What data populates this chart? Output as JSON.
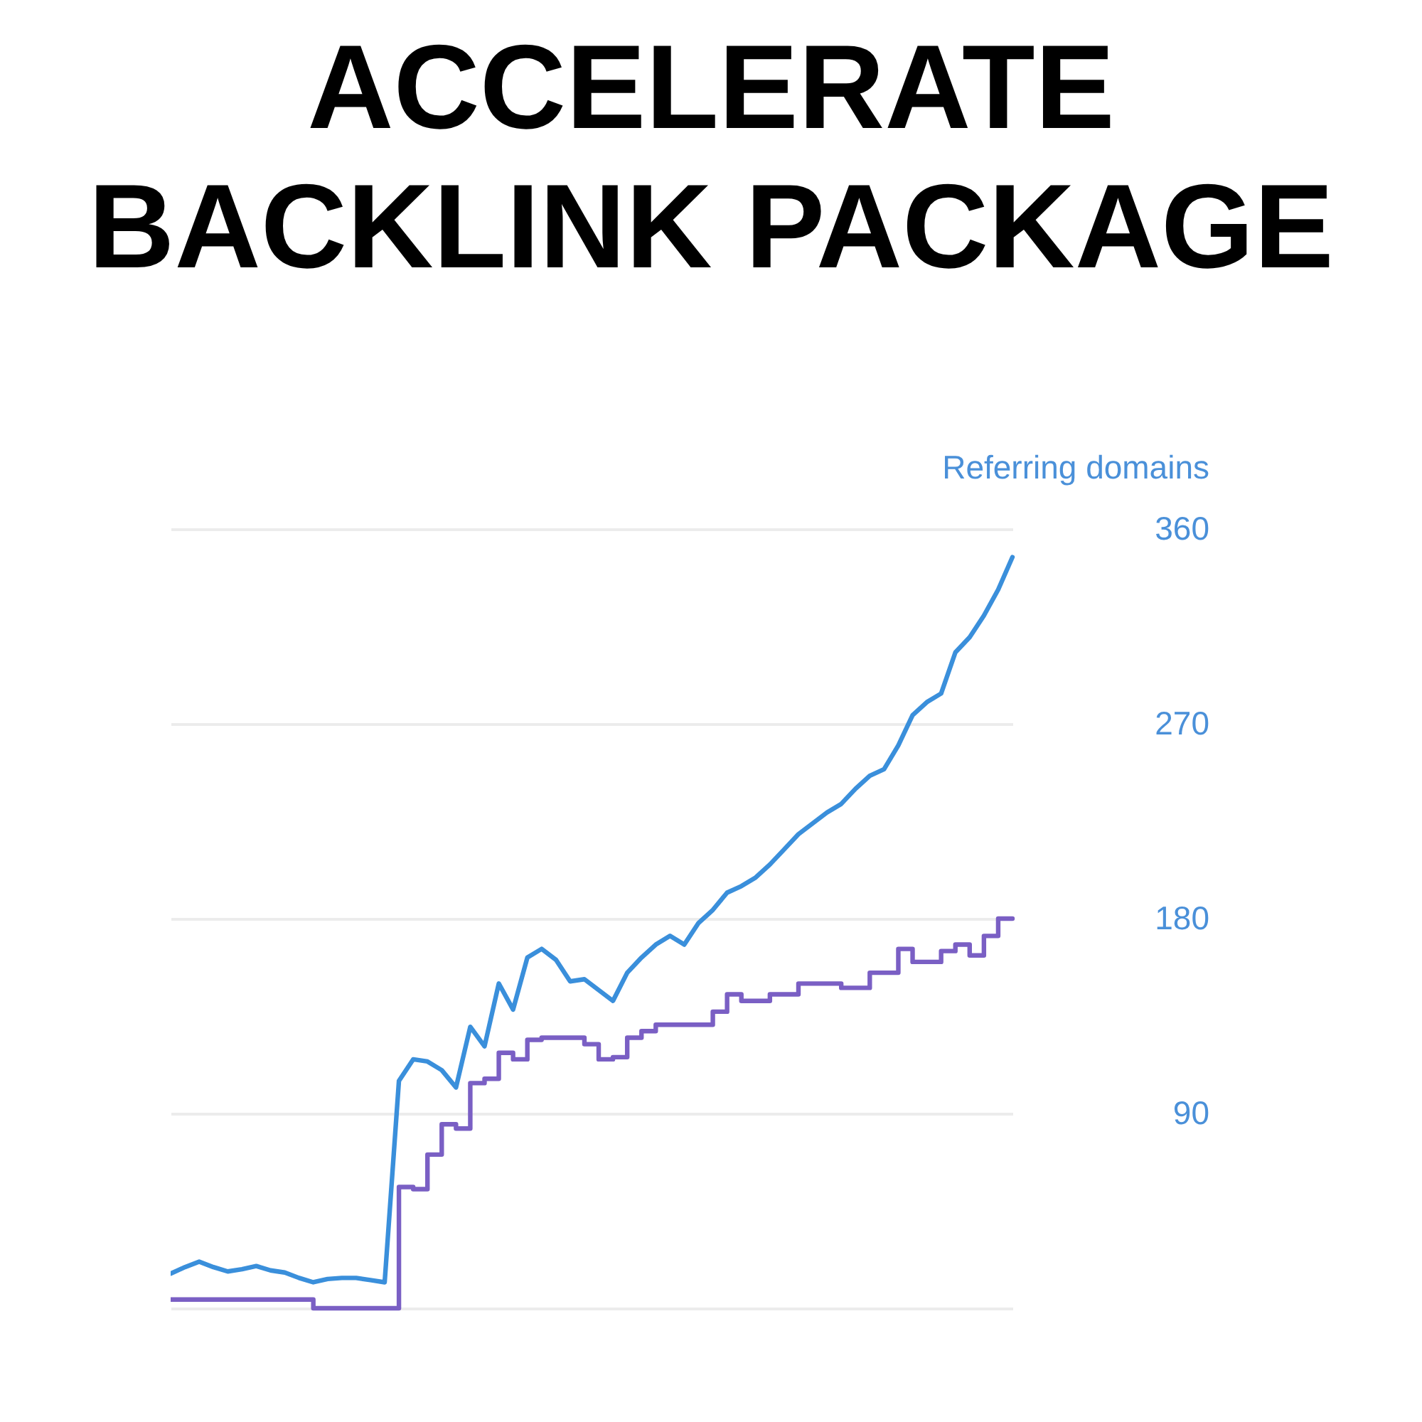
{
  "chart_data": {
    "type": "line",
    "title": "ACCELERATE BACKLINK PACKAGE",
    "ylabel": "Referring domains",
    "categories": [
      null,
      null,
      null,
      null,
      null,
      null,
      null,
      null,
      null,
      null,
      null,
      null,
      null,
      null,
      null,
      null,
      null,
      null,
      null,
      null,
      null,
      null,
      null,
      null,
      null,
      null,
      null,
      null,
      null,
      null,
      null,
      null,
      null,
      null,
      null,
      null,
      null,
      null,
      null,
      null,
      null,
      null,
      null,
      null,
      null,
      null,
      null,
      null,
      null,
      null,
      null,
      null,
      null,
      null,
      null,
      null,
      null,
      null,
      null,
      null
    ],
    "series": [
      {
        "color": "#3a8fdb",
        "values": [
          16,
          19,
          21.5,
          19,
          17,
          18,
          19.5,
          17.5,
          16.5,
          14,
          12,
          13.5,
          14,
          14,
          13,
          12,
          105,
          115,
          114,
          110,
          102,
          130,
          121,
          150,
          138,
          162,
          166,
          161,
          151,
          152,
          147,
          142,
          155,
          162,
          168,
          172,
          168,
          178,
          184,
          192,
          195,
          199,
          205,
          212,
          219,
          224,
          229,
          233,
          240,
          246,
          249,
          260,
          274,
          280,
          284,
          303,
          310,
          320,
          332,
          347
        ]
      },
      {
        "type": "step",
        "color": "#7a5fc4",
        "values": [
          4,
          4,
          4,
          4,
          4,
          4,
          4,
          4,
          4,
          4,
          0,
          0,
          0,
          0,
          0,
          0,
          56,
          55,
          71,
          85,
          83,
          104,
          106,
          118,
          115,
          124,
          125,
          125,
          125,
          122,
          115,
          116,
          125,
          128,
          131,
          131,
          131,
          131,
          137,
          145,
          142,
          142,
          145,
          145,
          150,
          150,
          150,
          148,
          148,
          155,
          155,
          166,
          160,
          160,
          165,
          168,
          163,
          172,
          180,
          180
        ]
      }
    ],
    "ylim": [
      0,
      360
    ],
    "yticks": [
      {
        "value": 0,
        "label": null
      },
      90,
      180,
      270,
      360
    ],
    "grid": "y"
  }
}
